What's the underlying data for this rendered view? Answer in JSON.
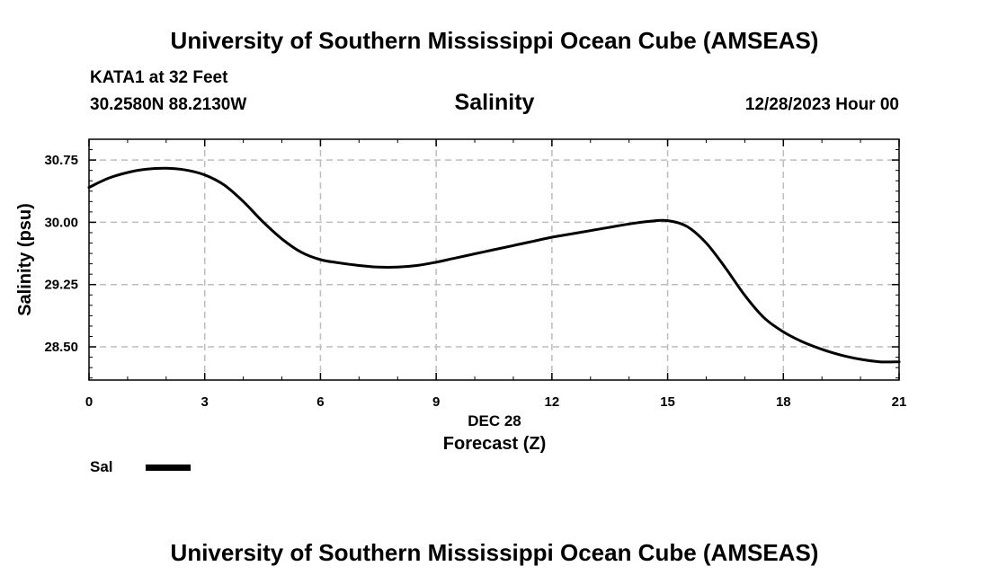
{
  "header": {
    "top_title": "University of Southern Mississippi Ocean Cube (AMSEAS)",
    "station": "KATA1 at 32 Feet",
    "coords": "30.2580N  88.2130W",
    "datetime": "12/28/2023 Hour 00",
    "bottom_title": "University of Southern Mississippi Ocean Cube (AMSEAS)"
  },
  "chart_data": {
    "type": "line",
    "title": "Salinity",
    "xlabel": "Forecast (Z)",
    "xsublabel": "DEC 28",
    "ylabel": "Salinity (psu)",
    "xlim": [
      0,
      21
    ],
    "ylim": [
      28.1,
      31.0
    ],
    "x_ticks": [
      0,
      3,
      6,
      9,
      12,
      15,
      18,
      21
    ],
    "x_tick_labels": [
      "0",
      "3",
      "6",
      "9",
      "12",
      "15",
      "18",
      "21"
    ],
    "y_ticks": [
      28.5,
      29.25,
      30.0,
      30.75
    ],
    "y_tick_labels": [
      "28.50",
      "29.25",
      "30.00",
      "30.75"
    ],
    "grid": true,
    "legend_position": "bottom-left",
    "series": [
      {
        "name": "Sal",
        "color": "#000000",
        "x": [
          0,
          0.5,
          1,
          1.5,
          2,
          2.5,
          3,
          3.5,
          4,
          4.5,
          5,
          5.5,
          6,
          6.5,
          7,
          7.5,
          8,
          8.5,
          9,
          9.5,
          10,
          10.5,
          11,
          11.5,
          12,
          12.5,
          13,
          13.5,
          14,
          14.5,
          15,
          15.5,
          16,
          16.5,
          17,
          17.5,
          18,
          18.5,
          19,
          19.5,
          20,
          20.5,
          21
        ],
        "values": [
          30.42,
          30.53,
          30.6,
          30.64,
          30.65,
          30.63,
          30.57,
          30.45,
          30.25,
          30.01,
          29.8,
          29.64,
          29.55,
          29.51,
          29.48,
          29.46,
          29.46,
          29.48,
          29.52,
          29.57,
          29.62,
          29.67,
          29.72,
          29.77,
          29.82,
          29.86,
          29.9,
          29.94,
          29.98,
          30.01,
          30.02,
          29.95,
          29.75,
          29.45,
          29.12,
          28.85,
          28.68,
          28.56,
          28.47,
          28.4,
          28.35,
          28.32,
          28.32
        ]
      }
    ]
  }
}
